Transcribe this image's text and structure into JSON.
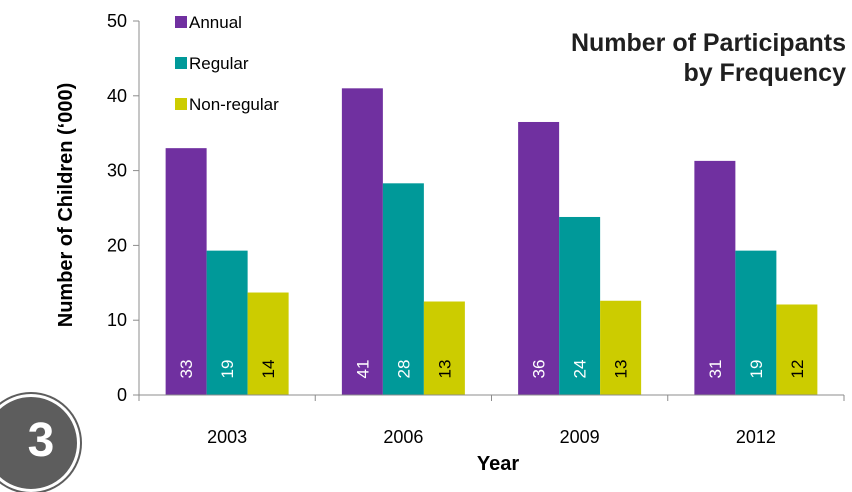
{
  "chart_data": {
    "type": "bar",
    "title_lines": [
      "Number of Participants",
      "by Frequency"
    ],
    "xlabel": "Year",
    "ylabel": "Number of Children (‘000)",
    "categories": [
      "2003",
      "2006",
      "2009",
      "2012"
    ],
    "ylim": [
      0,
      50
    ],
    "yticks": [
      "0",
      "10",
      "20",
      "30",
      "40",
      "50"
    ],
    "grid": false,
    "legend_position": "top-left",
    "series": [
      {
        "name": "Annual",
        "color": "#7030a0",
        "values": [
          33,
          41,
          36.5,
          31.3
        ],
        "labels": [
          "33",
          "41",
          "36",
          "31"
        ]
      },
      {
        "name": "Regular",
        "color": "#009999",
        "values": [
          19.3,
          28.3,
          23.8,
          19.3
        ],
        "labels": [
          "19",
          "28",
          "24",
          "19"
        ]
      },
      {
        "name": "Non-regular",
        "color": "#cccc00",
        "values": [
          13.7,
          12.5,
          12.6,
          12.1
        ],
        "labels": [
          "14",
          "13",
          "13",
          "12"
        ]
      }
    ]
  },
  "badge": {
    "label": "3"
  }
}
